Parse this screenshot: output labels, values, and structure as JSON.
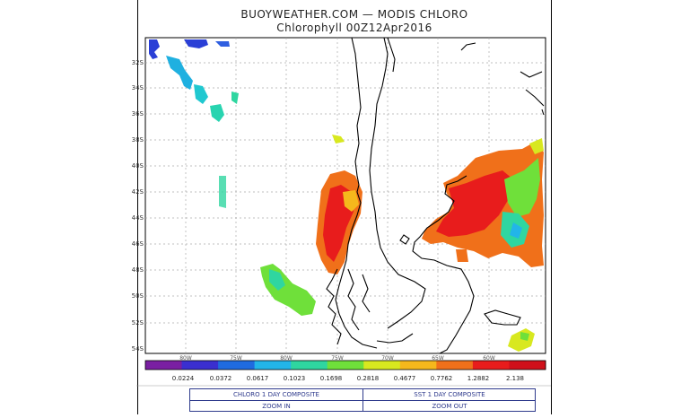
{
  "header": {
    "title": "BUOYWEATHER.COM — MODIS CHLORO",
    "subtitle": "Chlorophyll 00Z12Apr2016"
  },
  "map": {
    "lat_labels": [
      "32S",
      "34S",
      "36S",
      "38S",
      "40S",
      "42S",
      "44S",
      "46S",
      "48S",
      "50S",
      "52S",
      "54S"
    ],
    "lon_labels": [
      "80W",
      "75W",
      "80W",
      "75W",
      "70W",
      "65W",
      "60W"
    ],
    "land_color": "#ffffff",
    "ocean_color": "#ffffff",
    "coast_color": "#000000",
    "grid_color": "#aaaaaa"
  },
  "colorbar": {
    "tick_labels": [
      "0.0224",
      "0.0372",
      "0.0617",
      "0.1023",
      "0.1698",
      "0.2818",
      "0.4677",
      "0.7762",
      "1.2882",
      "2.138"
    ],
    "colors": [
      "#7a1fa2",
      "#3a2fd0",
      "#1f6be0",
      "#22b5e8",
      "#2fd6a0",
      "#6fe03a",
      "#d8e81f",
      "#f5b81c",
      "#f0701a",
      "#e81c1c",
      "#d0101a"
    ]
  },
  "buttons": {
    "chloro": "CHLORO 1 DAY COMPOSITE",
    "sst": "SST 1 DAY COMPOSITE",
    "zoom_in": "ZOOM IN",
    "zoom_out": "ZOOM OUT"
  }
}
